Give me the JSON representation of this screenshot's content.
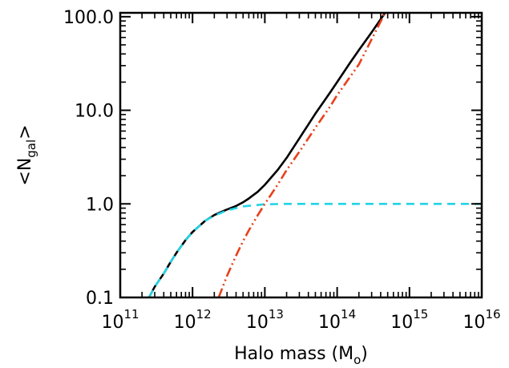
{
  "chart_data": {
    "type": "line",
    "xlabel": {
      "main": "Halo mass (M",
      "sub": "o",
      "close": ")"
    },
    "ylabel": {
      "main": "<N",
      "sub": "gal",
      "close": ">"
    },
    "x_scale": "log",
    "y_scale": "log",
    "xlim": [
      100000000000.0,
      1e+16
    ],
    "ylim": [
      0.1,
      110
    ],
    "grid": false,
    "legend": "none",
    "x_ticks": [
      {
        "value": 100000000000.0,
        "base": "10",
        "exp": "11"
      },
      {
        "value": 1000000000000.0,
        "base": "10",
        "exp": "12"
      },
      {
        "value": 10000000000000.0,
        "base": "10",
        "exp": "13"
      },
      {
        "value": 100000000000000.0,
        "base": "10",
        "exp": "14"
      },
      {
        "value": 1000000000000000.0,
        "base": "10",
        "exp": "15"
      },
      {
        "value": 1e+16,
        "base": "10",
        "exp": "16"
      }
    ],
    "y_ticks": [
      {
        "value": 0.1,
        "label": "0.1"
      },
      {
        "value": 1.0,
        "label": "1.0"
      },
      {
        "value": 10.0,
        "label": "10.0"
      },
      {
        "value": 100.0,
        "label": "100.0"
      }
    ],
    "series": [
      {
        "style": "solid",
        "color": "#000000",
        "x": [
          250000000000.0,
          300000000000.0,
          400000000000.0,
          500000000000.0,
          600000000000.0,
          800000000000.0,
          1000000000000.0,
          1500000000000.0,
          2000000000000.0,
          2500000000000.0,
          3000000000000.0,
          4000000000000.0,
          5000000000000.0,
          6000000000000.0,
          8000000000000.0,
          10000000000000.0,
          15000000000000.0,
          20000000000000.0,
          30000000000000.0,
          50000000000000.0,
          80000000000000.0,
          100000000000000.0,
          150000000000000.0,
          200000000000000.0,
          300000000000000.0,
          460000000000000.0
        ],
        "y": [
          0.1,
          0.13,
          0.18,
          0.24,
          0.3,
          0.41,
          0.5,
          0.66,
          0.76,
          0.82,
          0.87,
          0.95,
          1.04,
          1.14,
          1.35,
          1.6,
          2.3,
          3.1,
          5.0,
          9.2,
          15.5,
          20.0,
          32.0,
          44.0,
          68.0,
          110.0
        ]
      },
      {
        "style": "dashed",
        "color": "#22d3e6",
        "x": [
          250000000000.0,
          300000000000.0,
          400000000000.0,
          500000000000.0,
          600000000000.0,
          800000000000.0,
          1000000000000.0,
          1500000000000.0,
          2000000000000.0,
          3000000000000.0,
          5000000000000.0,
          10000000000000.0,
          20000000000000.0,
          100000000000000.0,
          1000000000000000.0,
          1e+16
        ],
        "y": [
          0.1,
          0.13,
          0.18,
          0.24,
          0.3,
          0.41,
          0.5,
          0.66,
          0.75,
          0.85,
          0.94,
          0.99,
          1.0,
          1.0,
          1.0,
          1.0
        ]
      },
      {
        "style": "dashdotdot",
        "color": "#e8401c",
        "x": [
          2300000000000.0,
          3000000000000.0,
          4000000000000.0,
          5000000000000.0,
          6000000000000.0,
          8000000000000.0,
          10000000000000.0,
          15000000000000.0,
          20000000000000.0,
          30000000000000.0,
          50000000000000.0,
          80000000000000.0,
          100000000000000.0,
          200000000000000.0,
          460000000000000.0
        ],
        "y": [
          0.1,
          0.17,
          0.28,
          0.4,
          0.52,
          0.76,
          1.0,
          1.6,
          2.3,
          3.6,
          6.5,
          11.0,
          14.5,
          31.0,
          110.0
        ]
      }
    ]
  }
}
